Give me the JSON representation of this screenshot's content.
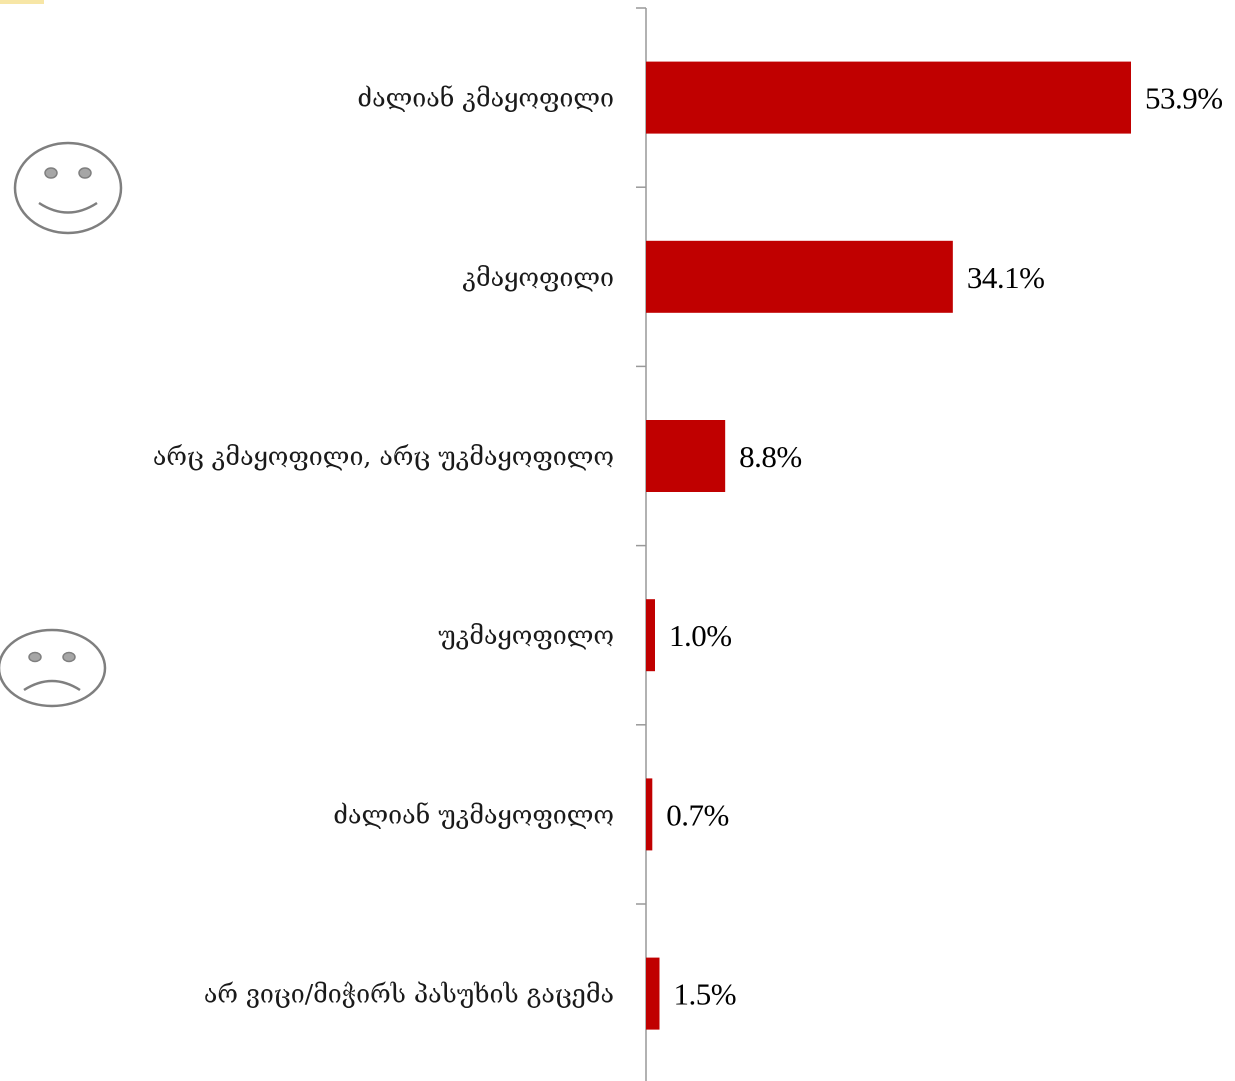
{
  "chart_data": {
    "type": "bar",
    "orientation": "horizontal",
    "categories": [
      "ძალიან კმაყოფილი",
      "კმაყოფილი",
      "არც კმაყოფილი, არც უკმაყოფილო",
      "უკმაყოფილო",
      "ძალიან უკმაყოფილო",
      "არ ვიცი/მიჭირს პასუხის გაცემა"
    ],
    "values": [
      53.9,
      34.1,
      8.8,
      1.0,
      0.7,
      1.5
    ],
    "value_labels": [
      "53.9%",
      "34.1%",
      "8.8%",
      "1.0%",
      "0.7%",
      "1.5%"
    ],
    "title": "",
    "xlabel": "",
    "ylabel": "",
    "xlim": [
      0,
      60
    ],
    "grid": false,
    "legend": "none",
    "bar_color": "#c00000",
    "axis_color": "#999999",
    "icons": [
      "smiley-face-icon",
      "sad-face-icon"
    ]
  }
}
